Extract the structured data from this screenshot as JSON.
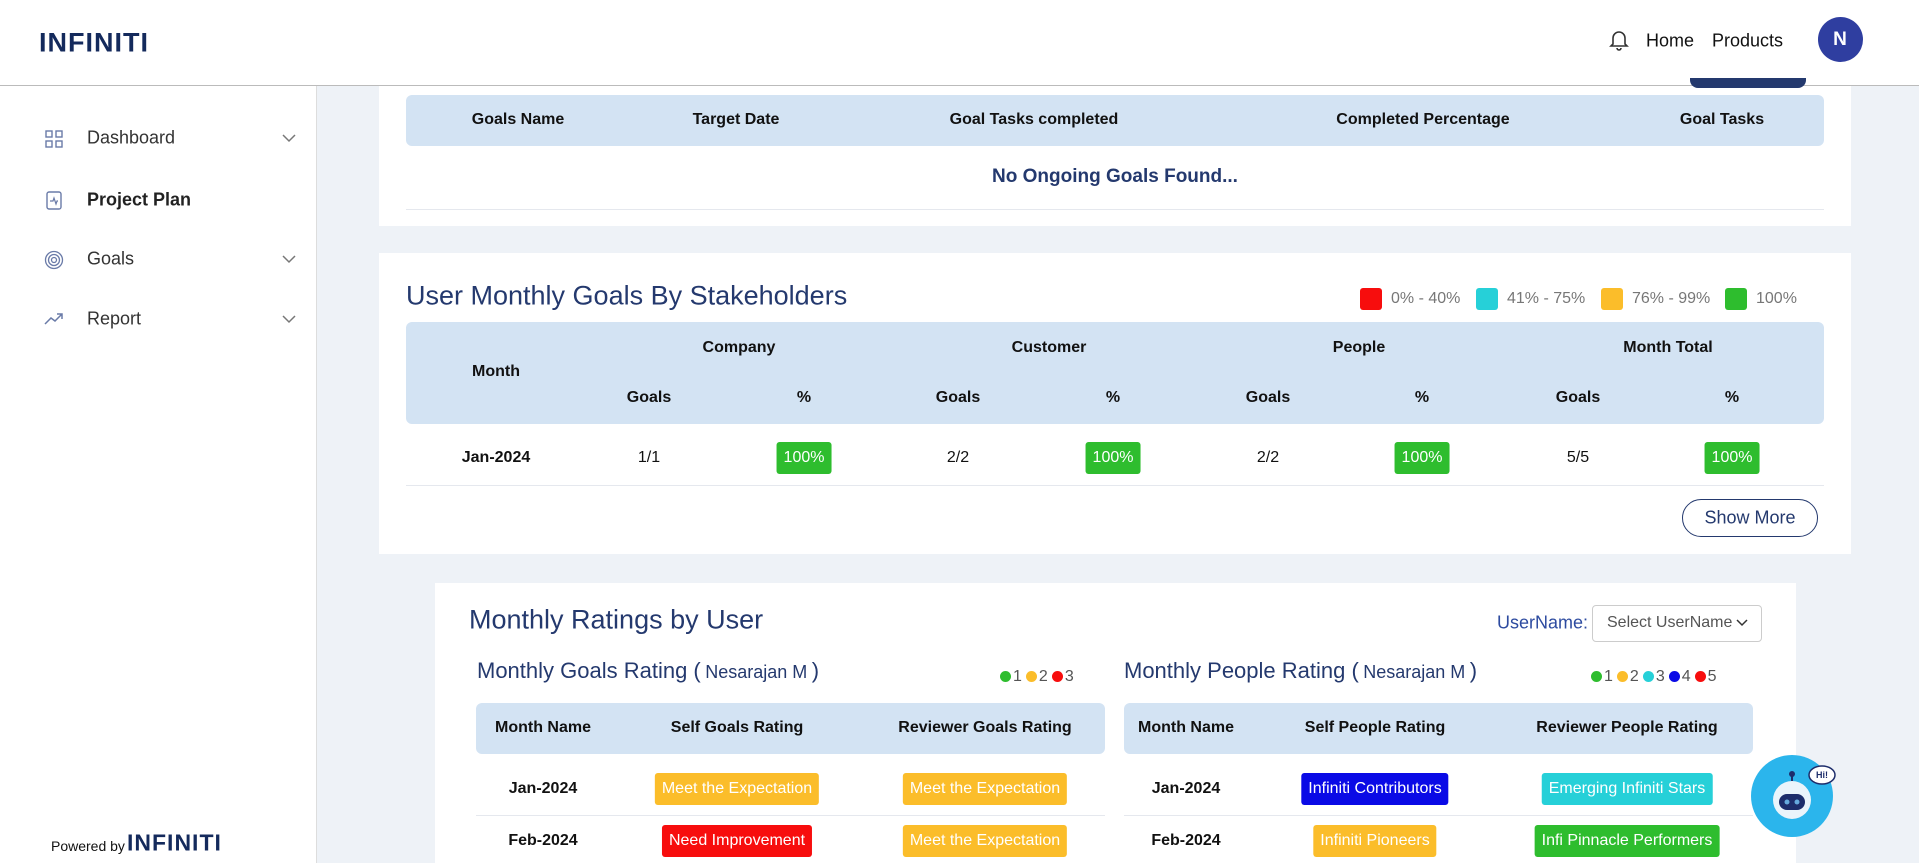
{
  "header": {
    "logo": "INFINITI",
    "nav": [
      "Home",
      "Products"
    ],
    "avatar": "N"
  },
  "sidebar": {
    "menu": [
      "Dashboard",
      "Project Plan",
      "Goals",
      "Report"
    ],
    "powered_by": "Powered by",
    "powered_logo": "INFINITI"
  },
  "ongoing_goals": {
    "columns": [
      "Goals Name",
      "Target Date",
      "Goal Tasks completed",
      "Completed Percentage",
      "Goal Tasks"
    ],
    "empty_message": "No Ongoing Goals Found..."
  },
  "stakeholder_goals": {
    "title": "User Monthly Goals By Stakeholders",
    "legend": [
      "0% - 40%",
      "41% - 75%",
      "76% - 99%",
      "100%"
    ],
    "month_header": "Month",
    "groups": [
      "Company",
      "Customer",
      "People",
      "Month Total"
    ],
    "sub_columns": [
      "Goals",
      "%"
    ],
    "rows": [
      [
        "Jan-2024",
        "1/1",
        "100%",
        "2/2",
        "100%",
        "2/2",
        "100%",
        "5/5",
        "100%"
      ]
    ],
    "button": "Show More"
  },
  "monthly_ratings": {
    "title": "Monthly Ratings by User",
    "username_label": "UserName:",
    "username_placeholder": "Select UserName",
    "goals_rating": {
      "title": "Monthly Goals Rating (",
      "user": "Nesarajan M",
      "title_close": ")",
      "legend": [
        1,
        2,
        3
      ],
      "columns": [
        "Month Name",
        "Self Goals Rating",
        "Reviewer Goals Rating"
      ],
      "rows": [
        [
          "Jan-2024",
          "Meet the Expectation",
          "Meet the Expectation"
        ],
        [
          "Feb-2024",
          "Need Improvement",
          "Meet the Expectation"
        ]
      ]
    },
    "people_rating": {
      "title": "Monthly People Rating (",
      "user": "Nesarajan M",
      "title_close": ")",
      "legend": [
        1,
        2,
        3,
        4,
        5
      ],
      "columns": [
        "Month Name",
        "Self People Rating",
        "Reviewer People Rating"
      ],
      "rows": [
        [
          "Jan-2024",
          "Infiniti Contributors",
          "Emerging Infiniti Stars"
        ],
        [
          "Feb-2024",
          "Infiniti Pioneers",
          "Infi Pinnacle Performers"
        ]
      ]
    }
  },
  "chatbot": {
    "bubble": "Hi!"
  }
}
